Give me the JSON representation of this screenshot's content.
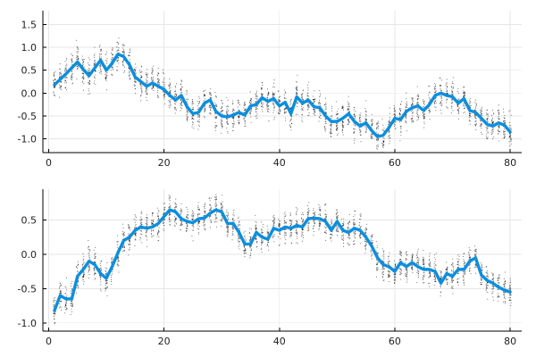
{
  "chart_data": [
    {
      "type": "line",
      "title": "",
      "xlabel": "",
      "ylabel": "",
      "xlim": [
        -1,
        82
      ],
      "ylim": [
        -1.3,
        1.8
      ],
      "xticks": [
        0,
        20,
        40,
        60,
        80
      ],
      "yticks": [
        -1.0,
        -0.5,
        0.0,
        0.5,
        1.0,
        1.5
      ],
      "grid": true,
      "legend": "none",
      "colors": {
        "line": "#0a8fe0",
        "samples": "#000000"
      },
      "sample_spread": 0.32,
      "series": [
        {
          "kind": "mean-line",
          "x": [
            1,
            2,
            3,
            4,
            5,
            6,
            7,
            8,
            9,
            10,
            11,
            12,
            13,
            14,
            15,
            16,
            17,
            18,
            19,
            20,
            21,
            22,
            23,
            24,
            25,
            26,
            27,
            28,
            29,
            30,
            31,
            32,
            33,
            34,
            35,
            36,
            37,
            38,
            39,
            40,
            41,
            42,
            43,
            44,
            45,
            46,
            47,
            48,
            49,
            50,
            51,
            52,
            53,
            54,
            55,
            56,
            57,
            58,
            59,
            60,
            61,
            62,
            63,
            64,
            65,
            66,
            67,
            68,
            69,
            70,
            71,
            72,
            73,
            74,
            75,
            76,
            77,
            78,
            79,
            80
          ],
          "values": [
            0.18,
            0.3,
            0.42,
            0.55,
            0.68,
            0.52,
            0.38,
            0.55,
            0.72,
            0.5,
            0.65,
            0.85,
            0.8,
            0.62,
            0.35,
            0.25,
            0.15,
            0.22,
            0.15,
            0.08,
            -0.05,
            -0.15,
            -0.05,
            -0.3,
            -0.45,
            -0.42,
            -0.22,
            -0.15,
            -0.4,
            -0.5,
            -0.52,
            -0.48,
            -0.42,
            -0.48,
            -0.28,
            -0.25,
            -0.1,
            -0.18,
            -0.12,
            -0.28,
            -0.2,
            -0.45,
            -0.08,
            -0.22,
            -0.15,
            -0.3,
            -0.32,
            -0.5,
            -0.62,
            -0.62,
            -0.55,
            -0.45,
            -0.62,
            -0.72,
            -0.65,
            -0.82,
            -0.95,
            -0.92,
            -0.75,
            -0.55,
            -0.58,
            -0.4,
            -0.32,
            -0.28,
            -0.38,
            -0.25,
            -0.05,
            0.0,
            -0.05,
            -0.08,
            -0.22,
            -0.12,
            -0.38,
            -0.42,
            -0.55,
            -0.68,
            -0.72,
            -0.65,
            -0.7,
            -0.85
          ]
        }
      ]
    },
    {
      "type": "line",
      "title": "",
      "xlabel": "",
      "ylabel": "",
      "xlim": [
        -1,
        82
      ],
      "ylim": [
        -1.12,
        0.95
      ],
      "xticks": [
        0,
        20,
        40,
        60,
        80
      ],
      "yticks": [
        -1.0,
        -0.5,
        0.0,
        0.5
      ],
      "grid": true,
      "legend": "none",
      "colors": {
        "line": "#0a8fe0",
        "samples": "#000000"
      },
      "sample_spread": 0.2,
      "series": [
        {
          "kind": "mean-line",
          "x": [
            1,
            2,
            3,
            4,
            5,
            6,
            7,
            8,
            9,
            10,
            11,
            12,
            13,
            14,
            15,
            16,
            17,
            18,
            19,
            20,
            21,
            22,
            23,
            24,
            25,
            26,
            27,
            28,
            29,
            30,
            31,
            32,
            33,
            34,
            35,
            36,
            37,
            38,
            39,
            40,
            41,
            42,
            43,
            44,
            45,
            46,
            47,
            48,
            49,
            50,
            51,
            52,
            53,
            54,
            55,
            56,
            57,
            58,
            59,
            60,
            61,
            62,
            63,
            64,
            65,
            66,
            67,
            68,
            69,
            70,
            71,
            72,
            73,
            74,
            75,
            76,
            77,
            78,
            79,
            80
          ],
          "values": [
            -0.82,
            -0.6,
            -0.65,
            -0.65,
            -0.32,
            -0.22,
            -0.1,
            -0.15,
            -0.28,
            -0.35,
            -0.18,
            0.02,
            0.2,
            0.25,
            0.35,
            0.4,
            0.38,
            0.4,
            0.45,
            0.55,
            0.65,
            0.62,
            0.52,
            0.48,
            0.46,
            0.52,
            0.53,
            0.6,
            0.65,
            0.62,
            0.45,
            0.45,
            0.32,
            0.15,
            0.15,
            0.32,
            0.25,
            0.22,
            0.38,
            0.35,
            0.4,
            0.38,
            0.42,
            0.4,
            0.52,
            0.53,
            0.52,
            0.48,
            0.35,
            0.48,
            0.35,
            0.32,
            0.38,
            0.35,
            0.25,
            0.12,
            -0.05,
            -0.15,
            -0.18,
            -0.25,
            -0.12,
            -0.18,
            -0.12,
            -0.18,
            -0.22,
            -0.22,
            -0.25,
            -0.42,
            -0.28,
            -0.32,
            -0.22,
            -0.22,
            -0.1,
            -0.05,
            -0.3,
            -0.38,
            -0.42,
            -0.48,
            -0.52,
            -0.55
          ]
        }
      ]
    }
  ]
}
